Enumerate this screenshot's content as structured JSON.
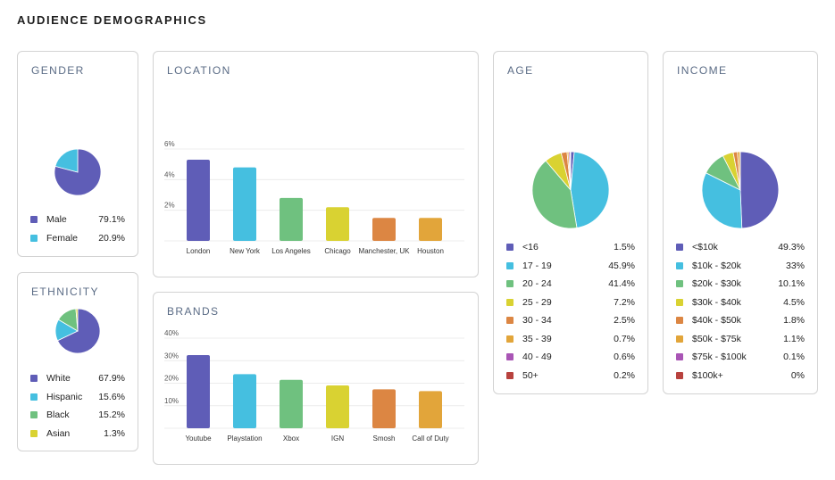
{
  "page": {
    "title": "AUDIENCE DEMOGRAPHICS"
  },
  "gender": {
    "title": "GENDER",
    "items": [
      {
        "label": "Male",
        "value": "79.1%",
        "color": "#5f5db7"
      },
      {
        "label": "Female",
        "value": "20.9%",
        "color": "#45bfe0"
      }
    ]
  },
  "ethnicity": {
    "title": "ETHNICITY",
    "items": [
      {
        "label": "White",
        "value": "67.9%",
        "color": "#5f5db7"
      },
      {
        "label": "Hispanic",
        "value": "15.6%",
        "color": "#45bfe0"
      },
      {
        "label": "Black",
        "value": "15.2%",
        "color": "#6fc17f"
      },
      {
        "label": "Asian",
        "value": "1.3%",
        "color": "#d9d232"
      }
    ]
  },
  "location": {
    "title": "LOCATION"
  },
  "brands": {
    "title": "BRANDS"
  },
  "age": {
    "title": "AGE",
    "items": [
      {
        "label": "<16",
        "value": "1.5%",
        "color": "#5f5db7"
      },
      {
        "label": "17 - 19",
        "value": "45.9%",
        "color": "#45bfe0"
      },
      {
        "label": "20 - 24",
        "value": "41.4%",
        "color": "#6fc17f"
      },
      {
        "label": "25 - 29",
        "value": "7.2%",
        "color": "#d9d232"
      },
      {
        "label": "30 - 34",
        "value": "2.5%",
        "color": "#dc8643"
      },
      {
        "label": "35 - 39",
        "value": "0.7%",
        "color": "#e2a53a"
      },
      {
        "label": "40 - 49",
        "value": "0.6%",
        "color": "#a955b5"
      },
      {
        "label": "50+",
        "value": "0.2%",
        "color": "#b8423e"
      }
    ]
  },
  "income": {
    "title": "INCOME",
    "items": [
      {
        "label": "<$10k",
        "value": "49.3%",
        "color": "#5f5db7"
      },
      {
        "label": "$10k - $20k",
        "value": "33%",
        "color": "#45bfe0"
      },
      {
        "label": "$20k - $30k",
        "value": "10.1%",
        "color": "#6fc17f"
      },
      {
        "label": "$30k - $40k",
        "value": "4.5%",
        "color": "#d9d232"
      },
      {
        "label": "$40k - $50k",
        "value": "1.8%",
        "color": "#dc8643"
      },
      {
        "label": "$50k - $75k",
        "value": "1.1%",
        "color": "#e2a53a"
      },
      {
        "label": "$75k - $100k",
        "value": "0.1%",
        "color": "#a955b5"
      },
      {
        "label": "$100k+",
        "value": "0%",
        "color": "#b8423e"
      }
    ]
  },
  "chart_data": [
    {
      "id": "gender",
      "type": "pie",
      "title": "GENDER",
      "categories": [
        "Male",
        "Female"
      ],
      "values": [
        79.1,
        20.9
      ]
    },
    {
      "id": "ethnicity",
      "type": "pie",
      "title": "ETHNICITY",
      "categories": [
        "White",
        "Hispanic",
        "Black",
        "Asian"
      ],
      "values": [
        67.9,
        15.6,
        15.2,
        1.3
      ]
    },
    {
      "id": "location",
      "type": "bar",
      "title": "LOCATION",
      "categories": [
        "London",
        "New York",
        "Los Angeles",
        "Chicago",
        "Manchester, UK",
        "Houston"
      ],
      "values": [
        5.3,
        4.8,
        2.8,
        2.2,
        1.5,
        1.5
      ],
      "colors": [
        "#5f5db7",
        "#45bfe0",
        "#6fc17f",
        "#d9d232",
        "#dc8643",
        "#e2a53a"
      ],
      "yticks": [
        "2%",
        "4%",
        "6%"
      ],
      "ytick_values": [
        2,
        4,
        6
      ],
      "ylim": [
        0,
        6
      ]
    },
    {
      "id": "brands",
      "type": "bar",
      "title": "BRANDS",
      "categories": [
        "Youtube",
        "Playstation",
        "Xbox",
        "IGN",
        "Smosh",
        "Call of Duty"
      ],
      "values": [
        32.5,
        24,
        21.5,
        19,
        17.3,
        16.5
      ],
      "colors": [
        "#5f5db7",
        "#45bfe0",
        "#6fc17f",
        "#d9d232",
        "#dc8643",
        "#e2a53a"
      ],
      "yticks": [
        "10%",
        "20%",
        "30%",
        "40%"
      ],
      "ytick_values": [
        10,
        20,
        30,
        40
      ],
      "ylim": [
        0,
        40
      ]
    },
    {
      "id": "age",
      "type": "pie",
      "title": "AGE",
      "categories": [
        "<16",
        "17 - 19",
        "20 - 24",
        "25 - 29",
        "30 - 34",
        "35 - 39",
        "40 - 49",
        "50+"
      ],
      "values": [
        1.5,
        45.9,
        41.4,
        7.2,
        2.5,
        0.7,
        0.6,
        0.2
      ]
    },
    {
      "id": "income",
      "type": "pie",
      "title": "INCOME",
      "categories": [
        "<$10k",
        "$10k - $20k",
        "$20k - $30k",
        "$30k - $40k",
        "$40k - $50k",
        "$50k - $75k",
        "$75k - $100k",
        "$100k+"
      ],
      "values": [
        49.3,
        33,
        10.1,
        4.5,
        1.8,
        1.1,
        0.1,
        0
      ]
    }
  ]
}
